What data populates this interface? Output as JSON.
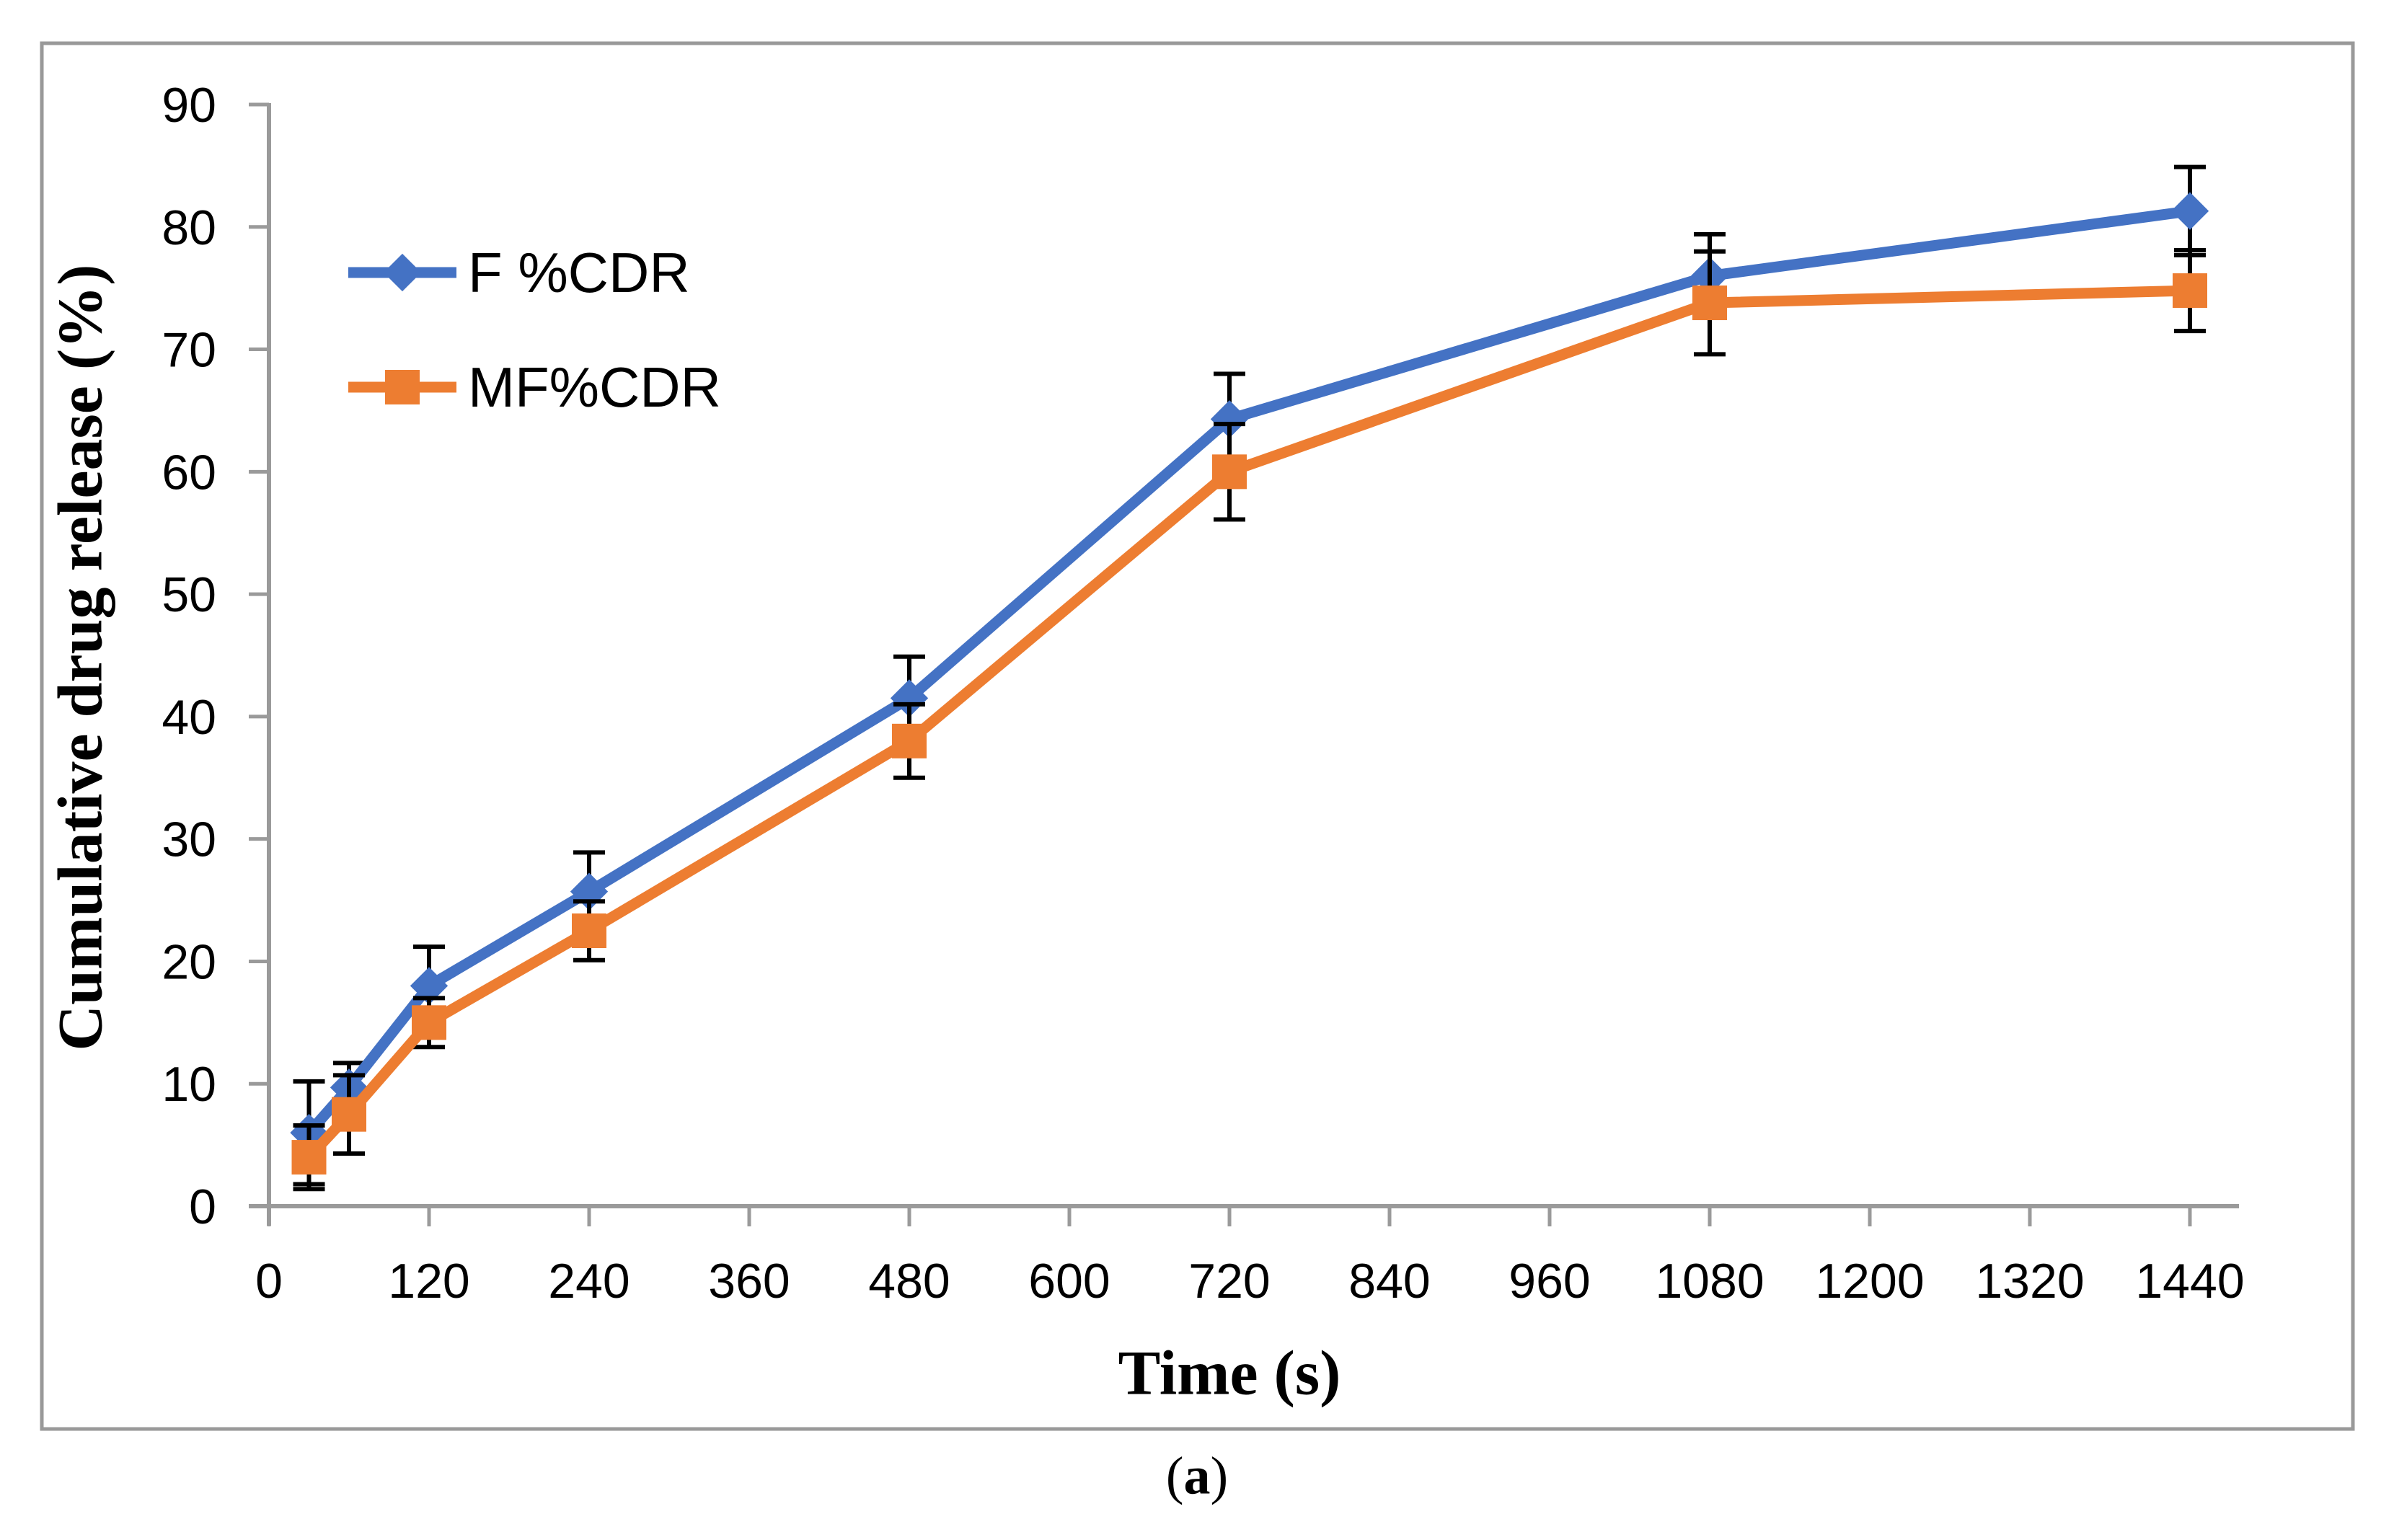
{
  "figure": {
    "caption": {
      "prefix": "(",
      "letter": "a",
      "suffix": ")"
    }
  },
  "chart_data": {
    "type": "line",
    "title": "",
    "xlabel": "Time (s)",
    "ylabel": "Cumulative drug release (%)",
    "xlim": [
      0,
      1480
    ],
    "ylim": [
      0,
      90
    ],
    "x_ticks": [
      0,
      120,
      240,
      360,
      480,
      600,
      720,
      840,
      960,
      1080,
      1200,
      1320,
      1440
    ],
    "y_ticks": [
      0,
      10,
      20,
      30,
      40,
      50,
      60,
      70,
      80,
      90
    ],
    "grid": false,
    "legend_position": "upper-left-inside",
    "axis_color": "#9a9a9a",
    "tick_label_color": "#000000",
    "error_bar_color": "#000000",
    "x": [
      30,
      60,
      120,
      240,
      480,
      720,
      1080,
      1440
    ],
    "series": [
      {
        "name": "F %CDR",
        "color": "#4472C4",
        "marker": "diamond",
        "values": [
          6.0,
          9.7,
          18.0,
          25.7,
          41.5,
          64.3,
          76.0,
          81.3
        ],
        "errors": [
          4.2,
          2.0,
          3.2,
          3.2,
          3.4,
          3.7,
          3.4,
          3.6
        ]
      },
      {
        "name": "MF%CDR",
        "color": "#ED7D31",
        "marker": "square",
        "values": [
          4.0,
          7.5,
          15.0,
          22.5,
          38.0,
          60.0,
          73.8,
          74.8
        ],
        "errors": [
          2.6,
          3.2,
          2.0,
          2.4,
          3.0,
          3.9,
          4.2,
          3.3
        ]
      }
    ]
  }
}
